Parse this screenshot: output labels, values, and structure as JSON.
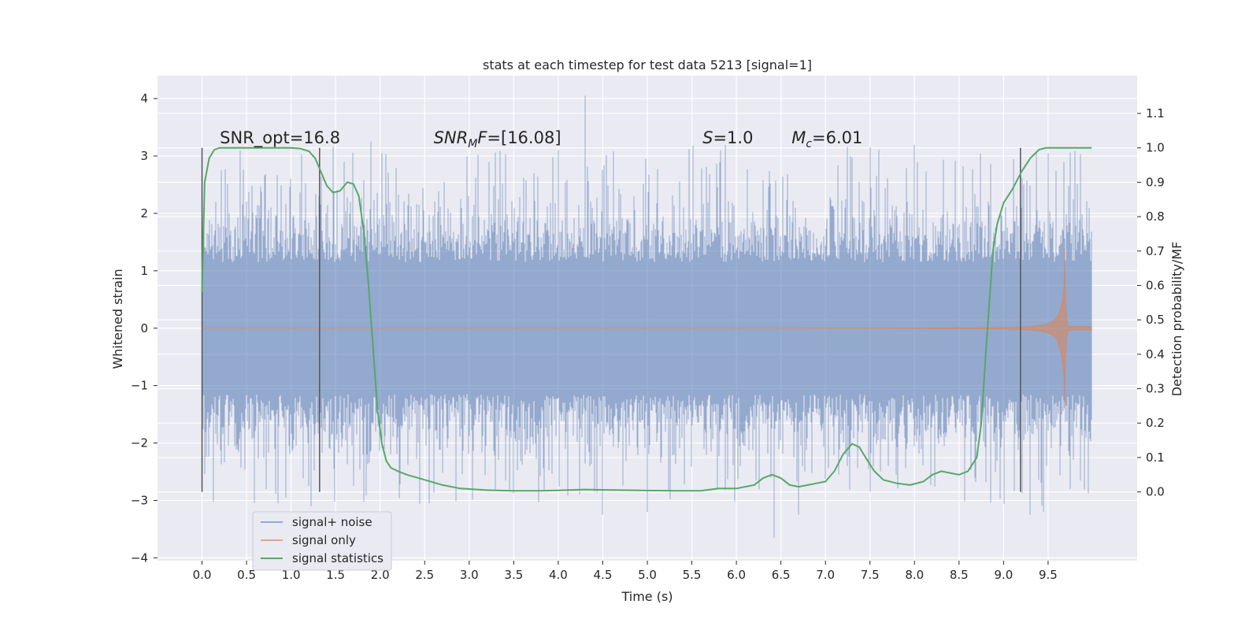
{
  "chart_data": {
    "type": "line",
    "title": "stats at each timestep for test data 5213 [signal=1]",
    "xlabel": "Time (s)",
    "ylabel": "Whitened strain",
    "y2label": "Detection probability/MF",
    "xlim": [
      -0.5,
      10.5
    ],
    "ylim": [
      -4.05,
      4.4
    ],
    "y2lim": [
      -0.2,
      1.21
    ],
    "xticks": [
      0.0,
      0.5,
      1.0,
      1.5,
      2.0,
      2.5,
      3.0,
      3.5,
      4.0,
      4.5,
      5.0,
      5.5,
      6.0,
      6.5,
      7.0,
      7.5,
      8.0,
      8.5,
      9.0,
      9.5
    ],
    "xtick_labels": [
      "0.0",
      "0.5",
      "1.0",
      "1.5",
      "2.0",
      "2.5",
      "3.0",
      "3.5",
      "4.0",
      "4.5",
      "5.0",
      "5.5",
      "6.0",
      "6.5",
      "7.0",
      "7.5",
      "8.0",
      "8.5",
      "9.0",
      "9.5"
    ],
    "yticks": [
      -4,
      -3,
      -2,
      -1,
      0,
      1,
      2,
      3,
      4
    ],
    "ytick_labels": [
      "−4",
      "−3",
      "−2",
      "−1",
      "0",
      "1",
      "2",
      "3",
      "4"
    ],
    "y2ticks": [
      0.0,
      0.1,
      0.2,
      0.3,
      0.4,
      0.5,
      0.6,
      0.7,
      0.8,
      0.9,
      1.0,
      1.1
    ],
    "y2tick_labels": [
      "0.0",
      "0.1",
      "0.2",
      "0.3",
      "0.4",
      "0.5",
      "0.6",
      "0.7",
      "0.8",
      "0.9",
      "1.0",
      "1.1"
    ],
    "grid": true,
    "legend_placement": "lower-left",
    "series": [
      {
        "name": "signal+ noise",
        "color": "#4c72b0",
        "kind": "noise-band",
        "x_range": [
          0.0,
          9.99
        ],
        "typical_amplitude": 1.4,
        "peak_max": 4.05,
        "peak_min": -3.65
      },
      {
        "name": "signal only",
        "color": "#dd8452",
        "kind": "chirp",
        "x_range": [
          0.0,
          9.99
        ],
        "merger_time": 9.68,
        "peak_amplitude": 1.95
      },
      {
        "name": "signal statistics",
        "color": "#55a868",
        "kind": "line",
        "x": [
          0.0,
          0.03,
          0.08,
          0.14,
          0.2,
          0.4,
          0.6,
          0.8,
          1.0,
          1.1,
          1.2,
          1.27,
          1.32,
          1.4,
          1.47,
          1.55,
          1.63,
          1.7,
          1.76,
          1.82,
          1.87,
          1.92,
          1.97,
          2.02,
          2.07,
          2.12,
          2.2,
          2.3,
          2.5,
          2.7,
          2.9,
          3.2,
          3.5,
          3.8,
          4.1,
          4.3,
          4.7,
          5.0,
          5.3,
          5.6,
          5.8,
          6.0,
          6.2,
          6.3,
          6.4,
          6.5,
          6.6,
          6.7,
          6.8,
          6.9,
          7.0,
          7.1,
          7.2,
          7.3,
          7.38,
          7.45,
          7.55,
          7.65,
          7.8,
          7.95,
          8.1,
          8.2,
          8.3,
          8.4,
          8.5,
          8.6,
          8.7,
          8.75,
          8.8,
          8.84,
          8.88,
          8.93,
          9.0,
          9.1,
          9.2,
          9.3,
          9.4,
          9.48,
          9.55,
          9.6,
          9.7,
          9.8,
          9.99
        ],
        "y": [
          0.58,
          0.9,
          0.97,
          0.995,
          1.0,
          1.0,
          1.0,
          1.0,
          1.0,
          0.998,
          0.99,
          0.97,
          0.94,
          0.89,
          0.87,
          0.875,
          0.9,
          0.895,
          0.86,
          0.75,
          0.6,
          0.42,
          0.24,
          0.14,
          0.09,
          0.07,
          0.06,
          0.05,
          0.035,
          0.02,
          0.01,
          0.005,
          0.003,
          0.003,
          0.005,
          0.007,
          0.005,
          0.004,
          0.003,
          0.003,
          0.01,
          0.01,
          0.02,
          0.04,
          0.05,
          0.04,
          0.02,
          0.015,
          0.02,
          0.025,
          0.03,
          0.06,
          0.11,
          0.14,
          0.13,
          0.1,
          0.06,
          0.035,
          0.025,
          0.02,
          0.03,
          0.05,
          0.06,
          0.055,
          0.05,
          0.06,
          0.1,
          0.2,
          0.4,
          0.55,
          0.7,
          0.78,
          0.84,
          0.88,
          0.93,
          0.97,
          0.995,
          1.0,
          1.0,
          1.0,
          1.0,
          1.0,
          1.0
        ]
      }
    ],
    "vertical_lines": [
      {
        "x": 0.0,
        "y_min": 0.0,
        "y_max": 1.0
      },
      {
        "x": 1.32,
        "y_min": 0.0,
        "y_max": 1.0
      },
      {
        "x": 9.19,
        "y_min": 0.0,
        "y_max": 1.0
      }
    ],
    "annotations": [
      {
        "text": "SNR_opt=16.8",
        "x": 0.2,
        "y": 3.22
      },
      {
        "base": "SNR",
        "sub": "M",
        "tail": "F=[16.08]",
        "x": 2.6,
        "y": 3.22,
        "italic": true
      },
      {
        "base": "S",
        "sub": "",
        "tail": "=1.0",
        "x": 5.62,
        "y": 3.22,
        "italic": true
      },
      {
        "base": "M",
        "sub": "c",
        "tail": "=6.01",
        "x": 6.62,
        "y": 3.22,
        "italic": true
      }
    ]
  }
}
